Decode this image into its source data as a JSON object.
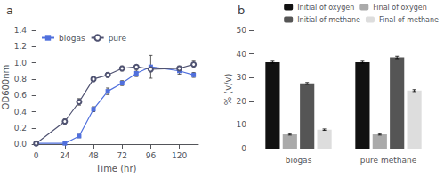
{
  "chart_data": [
    {
      "type": "line",
      "title": "a",
      "x": [
        0,
        24,
        36,
        48,
        60,
        72,
        84,
        96,
        120,
        132
      ],
      "series": [
        {
          "name": "biogas",
          "marker": "square",
          "values": [
            0.01,
            0.01,
            0.1,
            0.43,
            0.65,
            0.75,
            0.87,
            0.95,
            0.9,
            0.85
          ],
          "errors": [
            0.005,
            0.005,
            0.02,
            0.03,
            0.04,
            0.03,
            0.04,
            0.14,
            0.04,
            0.03
          ]
        },
        {
          "name": "pure",
          "marker": "circle",
          "values": [
            0.01,
            0.28,
            0.52,
            0.8,
            0.85,
            0.93,
            0.95,
            0.92,
            0.93,
            0.98
          ],
          "errors": [
            0.005,
            0.03,
            0.04,
            0.03,
            0.03,
            0.03,
            0.02,
            0.03,
            0.03,
            0.04
          ]
        }
      ],
      "xlabel": "Time (hr)",
      "ylabel": "OD600nm",
      "xlim": [
        -2,
        136
      ],
      "ylim": [
        0,
        1.4
      ],
      "xticks": [
        0,
        24,
        48,
        72,
        96,
        120
      ],
      "yticks": [
        {
          "value": 0,
          "label": "0.0"
        },
        0.2,
        0.4,
        0.6,
        0.8,
        {
          "value": 1,
          "label": "1.0"
        },
        1.2,
        1.4
      ],
      "legend": "upper left",
      "grid": false
    },
    {
      "type": "bar",
      "title": "b",
      "categories": [
        "biogas",
        "pure methane"
      ],
      "series": [
        {
          "name": "Initial of oxygen",
          "color": "#111111",
          "values": [
            36.5,
            36.5
          ],
          "errors": [
            0.4,
            0.4
          ]
        },
        {
          "name": "Final of oxygen",
          "color": "#aaaaaa",
          "values": [
            6.0,
            6.0
          ],
          "errors": [
            0.3,
            0.3
          ]
        },
        {
          "name": "Initial of methane",
          "color": "#555555",
          "values": [
            27.5,
            38.5
          ],
          "errors": [
            0.4,
            0.5
          ]
        },
        {
          "name": "Final of methane",
          "color": "#dddddd",
          "values": [
            8.0,
            24.5
          ],
          "errors": [
            0.3,
            0.4
          ]
        }
      ],
      "ylabel": "% (v/v)",
      "ylim": [
        0,
        50
      ],
      "yticks": [
        0,
        10,
        20,
        30,
        40,
        50
      ],
      "legend": "upper right",
      "grid": false
    }
  ]
}
